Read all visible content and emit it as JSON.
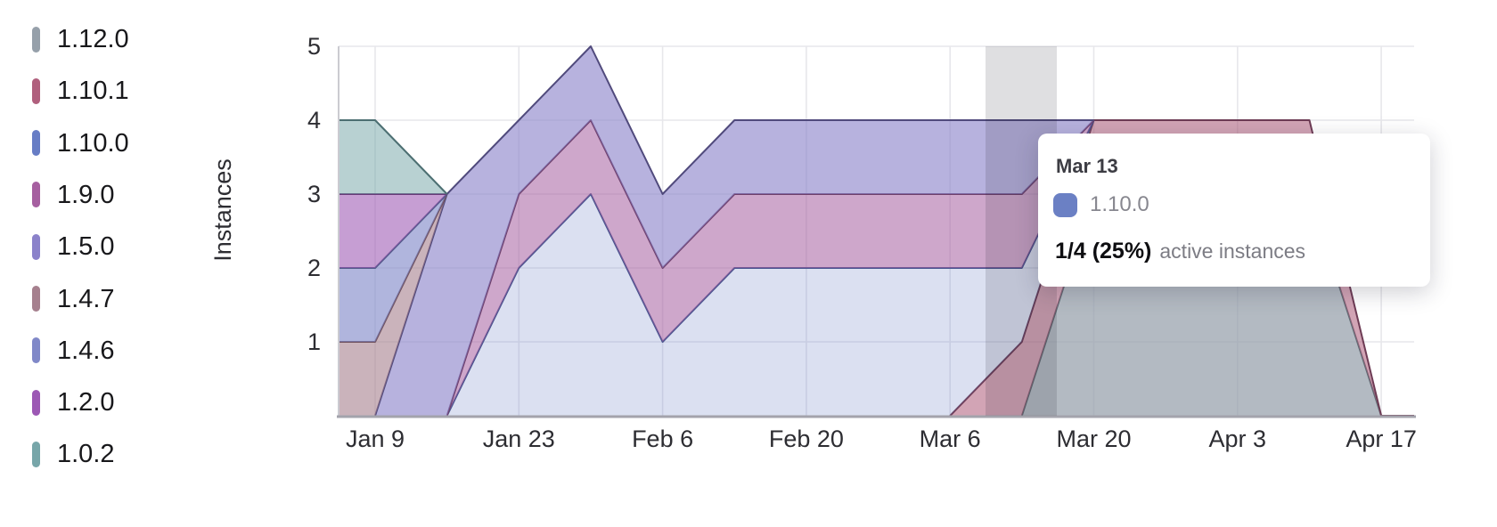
{
  "chart_data": {
    "type": "area",
    "stacked": true,
    "title": "",
    "ylabel": "Instances",
    "xlabel": "",
    "ylim": [
      0,
      5
    ],
    "grid": true,
    "legend_position": "left",
    "x": [
      "Jan 2",
      "Jan 9",
      "Jan 16",
      "Jan 23",
      "Jan 30",
      "Feb 6",
      "Feb 13",
      "Feb 20",
      "Feb 27",
      "Mar 6",
      "Mar 13",
      "Mar 20",
      "Mar 27",
      "Apr 3",
      "Apr 10",
      "Apr 17"
    ],
    "xticks": [
      "Jan 9",
      "Jan 23",
      "Feb 6",
      "Feb 20",
      "Mar 6",
      "Mar 20",
      "Apr 3",
      "Apr 17"
    ],
    "yticks": [
      "1",
      "2",
      "3",
      "4",
      "5"
    ],
    "series": [
      {
        "name": "1.12.0",
        "color": "#96a0aa",
        "fill_opacity": 0.72,
        "stroke": "#5f6a73",
        "values": [
          0,
          0,
          0,
          0,
          0,
          0,
          0,
          0,
          0,
          0,
          0,
          3,
          3,
          3,
          3,
          0
        ]
      },
      {
        "name": "1.10.1",
        "color": "#b05f7d",
        "fill_opacity": 0.57,
        "stroke": "#6e3c55",
        "values": [
          0,
          0,
          0,
          0,
          0,
          0,
          0,
          0,
          0,
          0,
          1,
          1,
          1,
          1,
          1,
          0
        ]
      },
      {
        "name": "1.10.0",
        "color": "#677dc5",
        "fill_opacity": 0.24,
        "stroke": "#47548f",
        "values": [
          0,
          0,
          0,
          2,
          3,
          1,
          2,
          2,
          2,
          2,
          1,
          0,
          0,
          0,
          0,
          0
        ]
      },
      {
        "name": "1.9.0",
        "color": "#a65fa0",
        "fill_opacity": 0.55,
        "stroke": "#6d3f6a",
        "values": [
          0,
          0,
          0,
          1,
          1,
          1,
          1,
          1,
          1,
          1,
          1,
          0,
          0,
          0,
          0,
          0
        ]
      },
      {
        "name": "1.5.0",
        "color": "#8b82ca",
        "fill_opacity": 0.62,
        "stroke": "#504a7c",
        "values": [
          0,
          0,
          3,
          1,
          1,
          1,
          1,
          1,
          1,
          1,
          1,
          0,
          0,
          0,
          0,
          0
        ]
      },
      {
        "name": "1.4.7",
        "color": "#a6808e",
        "fill_opacity": 0.6,
        "stroke": "#6e515e",
        "values": [
          1,
          1,
          0,
          0,
          0,
          0,
          0,
          0,
          0,
          0,
          0,
          0,
          0,
          0,
          0,
          0
        ]
      },
      {
        "name": "1.4.6",
        "color": "#8088c8",
        "fill_opacity": 0.62,
        "stroke": "#515988",
        "values": [
          1,
          1,
          0,
          0,
          0,
          0,
          0,
          0,
          0,
          0,
          0,
          0,
          0,
          0,
          0,
          0
        ]
      },
      {
        "name": "1.2.0",
        "color": "#9c58b4",
        "fill_opacity": 0.58,
        "stroke": "#673a78",
        "values": [
          1,
          1,
          0,
          0,
          0,
          0,
          0,
          0,
          0,
          0,
          0,
          0,
          0,
          0,
          0,
          0
        ]
      },
      {
        "name": "1.0.2",
        "color": "#77a6a9",
        "fill_opacity": 0.52,
        "stroke": "#4c6f72",
        "values": [
          1,
          1,
          0,
          0,
          0,
          0,
          0,
          0,
          0,
          0,
          0,
          0,
          0,
          0,
          0,
          0
        ]
      }
    ],
    "hovered_point": {
      "x": "Mar 13",
      "series": "1.10.0",
      "value": 1,
      "total": 4,
      "label": "1/4 (25%)"
    }
  },
  "legend": {
    "items": [
      {
        "label": "1.12.0",
        "color": "#96a0aa"
      },
      {
        "label": "1.10.1",
        "color": "#b05f7d"
      },
      {
        "label": "1.10.0",
        "color": "#677dc5"
      },
      {
        "label": "1.9.0",
        "color": "#a65fa0"
      },
      {
        "label": "1.5.0",
        "color": "#8b82ca"
      },
      {
        "label": "1.4.7",
        "color": "#a6808e"
      },
      {
        "label": "1.4.6",
        "color": "#8088c8"
      },
      {
        "label": "1.2.0",
        "color": "#9c58b4"
      },
      {
        "label": "1.0.2",
        "color": "#77a6a9"
      }
    ]
  },
  "tooltip": {
    "date": "Mar 13",
    "series": "1.10.0",
    "swatch_color": "#6b80c4",
    "value": "1/4 (25%)",
    "suffix": "active instances"
  }
}
